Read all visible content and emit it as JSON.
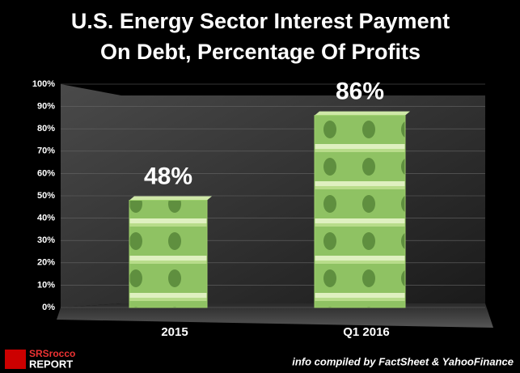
{
  "chart_data": {
    "type": "bar",
    "title": [
      "U.S. Energy Sector Interest Payment",
      "On Debt, Percentage Of Profits"
    ],
    "categories": [
      "2015",
      "Q1 2016"
    ],
    "values": [
      48,
      86
    ],
    "value_labels": [
      "48%",
      "86%"
    ],
    "color": "#9ccf6a",
    "ylim": [
      0,
      100
    ],
    "yticks": [
      {
        "value": 0,
        "label": "0%"
      },
      {
        "value": 10,
        "label": "10%"
      },
      {
        "value": 20,
        "label": "20%"
      },
      {
        "value": 30,
        "label": "30%"
      },
      {
        "value": 40,
        "label": "40%"
      },
      {
        "value": 50,
        "label": "50%"
      },
      {
        "value": 60,
        "label": "60%"
      },
      {
        "value": 70,
        "label": "70%"
      },
      {
        "value": 80,
        "label": "80%"
      },
      {
        "value": 90,
        "label": "90%"
      },
      {
        "value": 100,
        "label": "100%"
      }
    ],
    "grid": true,
    "source": "info compiled by FactSheet & YahooFinance",
    "logo": [
      "SRSrocco",
      "REPORT"
    ]
  }
}
